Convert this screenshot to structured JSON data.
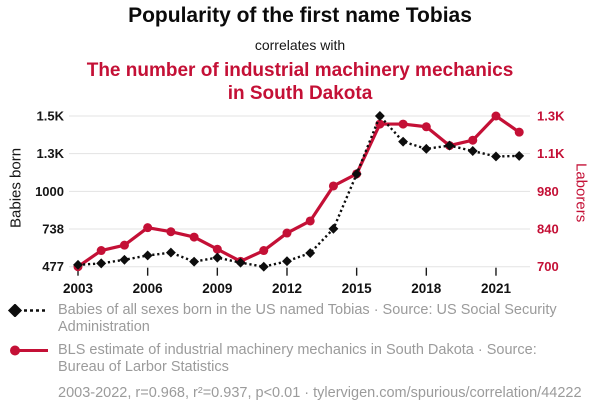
{
  "header": {
    "title": "Popularity of the first name Tobias",
    "connector": "correlates with",
    "subtitle": "The number of industrial machinery mechanics in South Dakota",
    "accent_color": "#c41036"
  },
  "chart_data": {
    "type": "line",
    "x": [
      2003,
      2004,
      2005,
      2006,
      2007,
      2008,
      2009,
      2010,
      2011,
      2012,
      2013,
      2014,
      2015,
      2016,
      2017,
      2018,
      2019,
      2020,
      2021,
      2022
    ],
    "x_ticks": [
      2003,
      2006,
      2009,
      2012,
      2015,
      2018,
      2021
    ],
    "left_axis": {
      "label": "Babies born",
      "color": "#161616",
      "range": [
        477,
        1523
      ],
      "tick_values": [
        1523,
        1261.5,
        1000,
        738.5,
        477
      ],
      "ticks": [
        "1.5K",
        "1.3K",
        "1000",
        "738",
        "477"
      ]
    },
    "right_axis": {
      "label": "Laborers",
      "color": "#c41036",
      "range": [
        700,
        1260
      ],
      "tick_values": [
        1260,
        1120,
        980,
        840,
        700
      ],
      "ticks": [
        "1.3K",
        "1.1K",
        "980",
        "840",
        "700"
      ]
    },
    "grid": true,
    "legend_position": "bottom",
    "series": [
      {
        "id": "laborers",
        "name": "BLS estimate of industrial machinery mechanics in South Dakota",
        "axis": "right",
        "color": "#c41036",
        "marker": "circle",
        "line_style": "solid",
        "values": [
          700,
          760,
          780,
          845,
          830,
          810,
          765,
          720,
          760,
          825,
          870,
          1000,
          1045,
          1230,
          1230,
          1220,
          1150,
          1170,
          1260,
          1200
        ]
      },
      {
        "id": "babies",
        "name": "Babies of all sexes born in the US named Tobias",
        "axis": "left",
        "color": "#0d0d0d",
        "marker": "diamond",
        "line_style": "dashed",
        "values": [
          490,
          500,
          525,
          555,
          575,
          512,
          540,
          505,
          477,
          515,
          572,
          740,
          1120,
          1523,
          1345,
          1295,
          1318,
          1280,
          1242,
          1246
        ]
      }
    ]
  },
  "legend": [
    {
      "label": "Babies of all sexes born in the US named Tobias · Source: US Social Security Administration",
      "marker": "diamond-dashed",
      "color": "#0d0d0d"
    },
    {
      "label": "BLS estimate of industrial machinery mechanics in South Dakota · Source: Bureau of Larbor Statistics",
      "marker": "circle-solid",
      "color": "#c41036"
    }
  ],
  "footer": {
    "stats": "2003-2022, r=0.968, r²=0.937, p<0.01 · tylervigen.com/spurious/correlation/44222"
  }
}
